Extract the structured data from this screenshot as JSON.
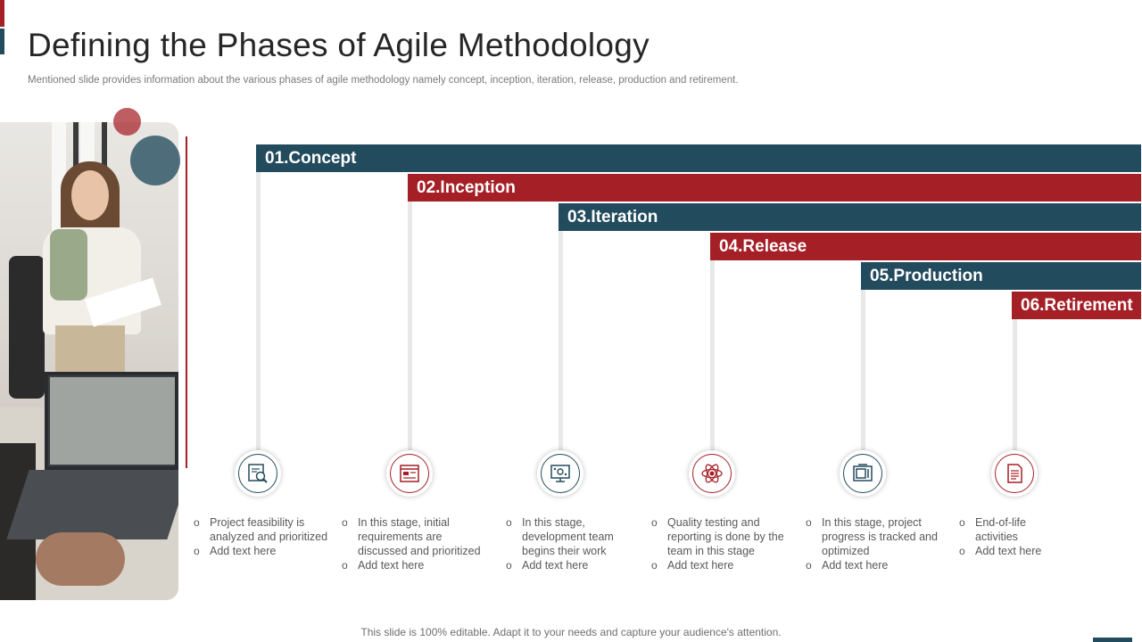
{
  "header": {
    "title": "Defining the Phases of Agile Methodology",
    "subtitle": "Mentioned slide provides information about the various phases of agile methodology namely concept, inception, iteration, release, production and retirement."
  },
  "phases": [
    {
      "label": "01.Concept",
      "color": "#234b5e",
      "icon": "magnifier-document-icon",
      "bullets": [
        "Project feasibility is analyzed and prioritized",
        "Add text here"
      ]
    },
    {
      "label": "02.Inception",
      "color": "#a51f26",
      "icon": "browser-window-icon",
      "bullets": [
        "In this stage, initial requirements are discussed and prioritized",
        "Add text here"
      ]
    },
    {
      "label": "03.Iteration",
      "color": "#234b5e",
      "icon": "monitor-settings-icon",
      "bullets": [
        "In this stage, development team begins their work",
        "Add text here"
      ]
    },
    {
      "label": "04.Release",
      "color": "#a51f26",
      "icon": "atom-team-icon",
      "bullets": [
        "Quality testing and reporting is done by the team in this stage",
        "Add text here"
      ]
    },
    {
      "label": "05.Production",
      "color": "#234b5e",
      "icon": "microwave-window-icon",
      "bullets": [
        "In this stage, project progress is tracked and optimized",
        "Add text here"
      ]
    },
    {
      "label": "06.Retirement",
      "color": "#a51f26",
      "icon": "document-list-icon",
      "bullets": [
        "End-of-life activities",
        "Add text here"
      ]
    }
  ],
  "footer": {
    "note": "This slide is 100% editable. Adapt it to your needs and capture your audience's attention."
  }
}
